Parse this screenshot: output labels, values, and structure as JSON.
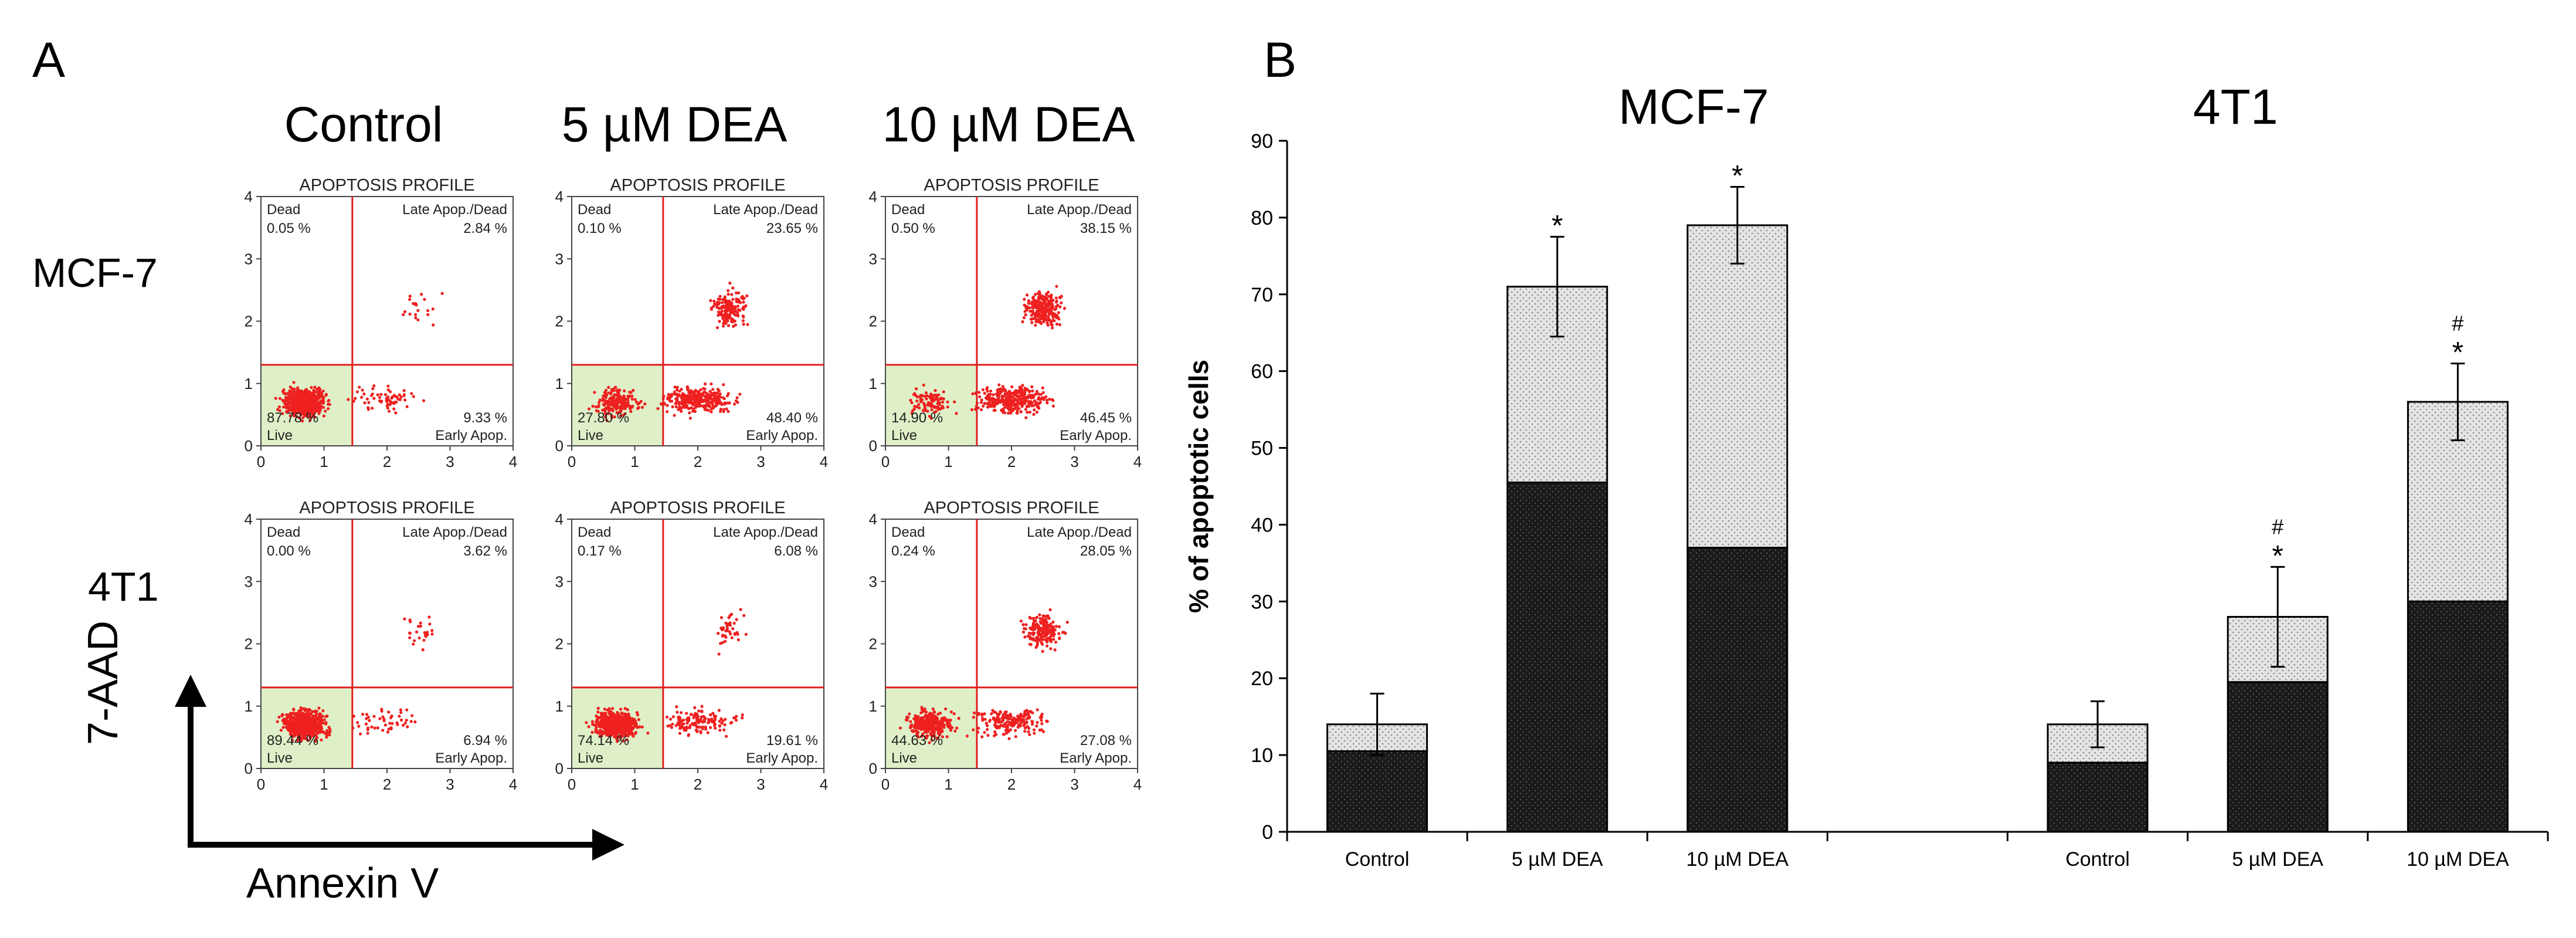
{
  "panel_a": {
    "letter": "A",
    "columns": [
      "Control",
      "5 µM DEA",
      "10 µM DEA"
    ],
    "rows": [
      "MCF-7",
      "4T1"
    ],
    "plot_title": "APOPTOSIS PROFILE",
    "quadrant_labels": {
      "ul": "Dead",
      "ur": "Late Apop./Dead",
      "ll": "Live",
      "lr": "Early Apop."
    },
    "axis_ticks": [
      "0",
      "1",
      "2",
      "3",
      "4"
    ],
    "y_axis_label": "7-AAD",
    "x_axis_label": "Annexin V",
    "dot_color": "#ee2020",
    "live_shade": "#dff0c8",
    "gate_color": "#e02020",
    "plots": [
      [
        {
          "dead": "0.05 %",
          "late": "2.84 %",
          "live": "87.78 %",
          "early": "9.33 %"
        },
        {
          "dead": "0.10 %",
          "late": "23.65 %",
          "live": "27.80 %",
          "early": "48.40 %"
        },
        {
          "dead": "0.50 %",
          "late": "38.15 %",
          "live": "14.90 %",
          "early": "46.45 %"
        }
      ],
      [
        {
          "dead": "0.00 %",
          "late": "3.62 %",
          "live": "89.44 %",
          "early": "6.94 %"
        },
        {
          "dead": "0.17 %",
          "late": "6.08 %",
          "live": "74.14 %",
          "early": "19.61 %"
        },
        {
          "dead": "0.24 %",
          "late": "28.05 %",
          "live": "44.63 %",
          "early": "27.08 %"
        }
      ]
    ]
  },
  "panel_b": {
    "letter": "B"
  },
  "chart_data": {
    "type": "bar",
    "stacked": true,
    "ylabel": "% of apoptotic cells",
    "ylim": [
      0,
      90
    ],
    "yticks": [
      0,
      10,
      20,
      30,
      40,
      50,
      60,
      70,
      80,
      90
    ],
    "groups": [
      {
        "title": "MCF-7",
        "categories": [
          "Control",
          "5 µM DEA",
          "10 µM DEA"
        ],
        "early_apoptotic": [
          10.5,
          45.5,
          37
        ],
        "total_apoptotic": [
          14,
          71,
          79
        ],
        "error": [
          4,
          6.5,
          5
        ],
        "markers": [
          "",
          "*",
          "*"
        ]
      },
      {
        "title": "4T1",
        "categories": [
          "Control",
          "5 µM DEA",
          "10 µM DEA"
        ],
        "early_apoptotic": [
          9,
          19.5,
          30
        ],
        "total_apoptotic": [
          14,
          28,
          56
        ],
        "error": [
          3,
          6.5,
          5
        ],
        "markers": [
          "",
          "#\n*",
          "#\n*"
        ]
      }
    ],
    "series_colors": {
      "early": "#1c1c1c",
      "late": "#d8d8d8"
    }
  }
}
